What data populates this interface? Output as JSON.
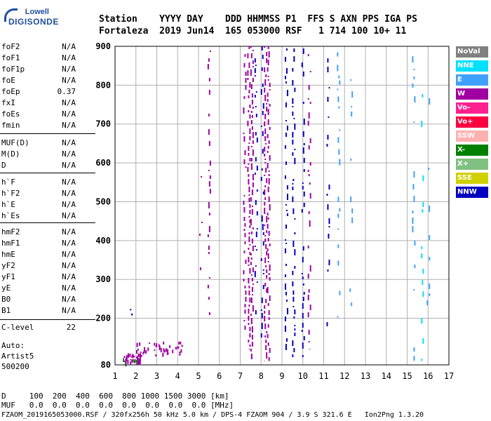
{
  "logo": {
    "line1": "Lowell",
    "line2": "DIGISONDE"
  },
  "header": {
    "row1": "Station    YYYY DAY    DDD HHMMSS P1  FFS S AXN PPS IGA PS",
    "row2": "Fortaleza  2019 Jun14  165 053000 RSF   1 714 100 10+ 11"
  },
  "params_group1": [
    {
      "label": "foF2",
      "value": "N/A"
    },
    {
      "label": "foF1",
      "value": "N/A"
    },
    {
      "label": "foF1p",
      "value": "N/A"
    },
    {
      "label": "foE",
      "value": "N/A"
    },
    {
      "label": "foEp",
      "value": "0.37"
    },
    {
      "label": "fxI",
      "value": "N/A"
    },
    {
      "label": "foEs",
      "value": "N/A"
    },
    {
      "label": "fmin",
      "value": "N/A"
    }
  ],
  "params_group2": [
    {
      "label": "MUF(D)",
      "value": "N/A"
    },
    {
      "label": "M(D)",
      "value": "N/A"
    },
    {
      "label": "D",
      "value": "N/A"
    }
  ],
  "params_group3": [
    {
      "label": "h`F",
      "value": "N/A"
    },
    {
      "label": "h`F2",
      "value": "N/A"
    },
    {
      "label": "h`E",
      "value": "N/A"
    },
    {
      "label": "h`Es",
      "value": "N/A"
    }
  ],
  "params_group4": [
    {
      "label": "hmF2",
      "value": "N/A"
    },
    {
      "label": "hmF1",
      "value": "N/A"
    },
    {
      "label": "hmE",
      "value": "N/A"
    },
    {
      "label": "yF2",
      "value": "N/A"
    },
    {
      "label": "yF1",
      "value": "N/A"
    },
    {
      "label": "yE",
      "value": "N/A"
    },
    {
      "label": "B0",
      "value": "N/A"
    },
    {
      "label": "B1",
      "value": "N/A"
    }
  ],
  "clevel": {
    "label": "C-level",
    "value": "22"
  },
  "auto": {
    "line1": "Auto:",
    "line2": "Artist5",
    "line3": "500200"
  },
  "legend": [
    {
      "label": "NoVal",
      "color": "#808080"
    },
    {
      "label": "NNE",
      "color": "#00e0ff"
    },
    {
      "label": "E",
      "color": "#40a0ff"
    },
    {
      "label": "W",
      "color": "#a000a0"
    },
    {
      "label": "Vo-",
      "color": "#ff2090"
    },
    {
      "label": "Vo+",
      "color": "#ff0040"
    },
    {
      "label": "SSW",
      "color": "#ffb0b0"
    },
    {
      "label": "X-",
      "color": "#008000"
    },
    {
      "label": "X+",
      "color": "#80c080"
    },
    {
      "label": "SSE",
      "color": "#d0d000"
    },
    {
      "label": "NNW",
      "color": "#0000c0"
    }
  ],
  "footer": {
    "row1": "D     100  200  400  600  800 1000 1500 3000 [km]",
    "row2": "MUF   0.0  0.0  0.0  0.0  0.0  0.0  0.0  0.0 [MHz]",
    "row3": "FZAOM_2019165053000.RSF / 320fx256h 50 kHz 5.0 km / DPS-4 FZAOM 904 / 3.9 S 321.6 E   Ion2Png 1.3.20"
  },
  "chart_data": {
    "type": "scatter",
    "xlim": [
      1,
      17
    ],
    "ylim": [
      80,
      900
    ],
    "xticks": [
      1,
      2,
      3,
      4,
      5,
      6,
      7,
      8,
      9,
      10,
      11,
      12,
      13,
      14,
      15,
      16,
      17
    ],
    "yticks": [
      80,
      200,
      300,
      400,
      500,
      600,
      700,
      800,
      900
    ],
    "grid": true,
    "columns": [
      {
        "x": 7.4,
        "ymin": 120,
        "ymax": 900,
        "color": "#a000a0",
        "density": 0.85
      },
      {
        "x": 7.55,
        "ymin": 90,
        "ymax": 900,
        "color": "#a000a0",
        "density": 0.8
      },
      {
        "x": 8.2,
        "ymin": 90,
        "ymax": 900,
        "color": "#a000a0",
        "density": 0.9
      },
      {
        "x": 8.35,
        "ymin": 90,
        "ymax": 900,
        "color": "#a000a0",
        "density": 0.85
      },
      {
        "x": 7.2,
        "ymin": 150,
        "ymax": 880,
        "color": "#a000a0",
        "density": 0.35
      },
      {
        "x": 7.75,
        "ymin": 200,
        "ymax": 880,
        "color": "#0000c0",
        "density": 0.25
      },
      {
        "x": 8.05,
        "ymin": 150,
        "ymax": 900,
        "color": "#0000c0",
        "density": 0.35
      },
      {
        "x": 9.2,
        "ymin": 100,
        "ymax": 900,
        "color": "#0000c0",
        "density": 0.35
      },
      {
        "x": 9.55,
        "ymin": 100,
        "ymax": 900,
        "color": "#0000c0",
        "density": 0.4
      },
      {
        "x": 10.0,
        "ymin": 100,
        "ymax": 900,
        "color": "#0000c0",
        "density": 0.35
      },
      {
        "x": 10.3,
        "ymin": 120,
        "ymax": 880,
        "color": "#a000a0",
        "density": 0.2
      },
      {
        "x": 5.5,
        "ymin": 200,
        "ymax": 900,
        "color": "#a000a0",
        "density": 0.2
      },
      {
        "x": 5.1,
        "ymin": 300,
        "ymax": 620,
        "color": "#a000a0",
        "density": 0.2
      },
      {
        "x": 11.2,
        "ymin": 150,
        "ymax": 880,
        "color": "#0000c0",
        "density": 0.15
      },
      {
        "x": 11.7,
        "ymin": 200,
        "ymax": 890,
        "color": "#40a0ff",
        "density": 0.12
      },
      {
        "x": 12.3,
        "ymin": 200,
        "ymax": 880,
        "color": "#40a0ff",
        "density": 0.08
      },
      {
        "x": 15.3,
        "ymin": 90,
        "ymax": 880,
        "color": "#40a0ff",
        "density": 0.12
      },
      {
        "x": 15.7,
        "ymin": 90,
        "ymax": 880,
        "color": "#00e0ff",
        "density": 0.12
      },
      {
        "x": 16.0,
        "ymin": 200,
        "ymax": 880,
        "color": "#40a0ff",
        "density": 0.08
      }
    ],
    "clusters": [
      {
        "xmin": 1.4,
        "xmax": 2.2,
        "ymin": 85,
        "ymax": 110,
        "color": "#a000a0",
        "count": 40
      },
      {
        "xmin": 2.0,
        "xmax": 4.2,
        "ymin": 105,
        "ymax": 140,
        "color": "#a000a0",
        "count": 40
      },
      {
        "xmin": 1.3,
        "xmax": 2.2,
        "ymin": 85,
        "ymax": 105,
        "color": "#008000",
        "count": 6
      },
      {
        "xmin": 1.6,
        "xmax": 1.8,
        "ymin": 210,
        "ymax": 225,
        "color": "#0000c0",
        "count": 2
      }
    ]
  }
}
